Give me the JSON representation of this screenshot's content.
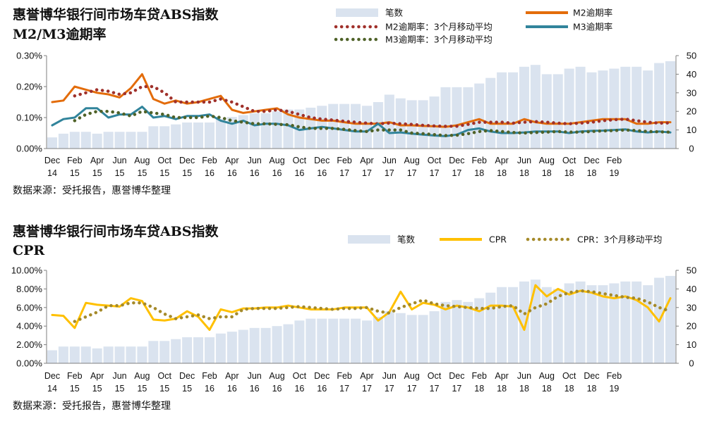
{
  "chart_data": [
    {
      "type": "bar",
      "title_lines": [
        "惠誉博华银行间市场车贷ABS指数",
        "M2/M3逾期率"
      ],
      "source": "数据来源：受托报告，惠誉博华整理",
      "legend": {
        "bars": "笔数",
        "m2": "M2逾期率",
        "m2ma": "M2逾期率：3个月移动平均",
        "m3": "M3逾期率",
        "m3ma": "M3逾期率：3个月移动平均"
      },
      "x_tick_labels": [
        {
          "month": "Dec",
          "year": "14"
        },
        {
          "month": "Feb",
          "year": "15"
        },
        {
          "month": "Apr",
          "year": "15"
        },
        {
          "month": "Jun",
          "year": "15"
        },
        {
          "month": "Aug",
          "year": "15"
        },
        {
          "month": "Oct",
          "year": "15"
        },
        {
          "month": "Dec",
          "year": "15"
        },
        {
          "month": "Feb",
          "year": "16"
        },
        {
          "month": "Apr",
          "year": "16"
        },
        {
          "month": "Jun",
          "year": "16"
        },
        {
          "month": "Aug",
          "year": "16"
        },
        {
          "month": "Oct",
          "year": "16"
        },
        {
          "month": "Dec",
          "year": "16"
        },
        {
          "month": "Feb",
          "year": "17"
        },
        {
          "month": "Apr",
          "year": "17"
        },
        {
          "month": "Jun",
          "year": "17"
        },
        {
          "month": "Aug",
          "year": "17"
        },
        {
          "month": "Oct",
          "year": "17"
        },
        {
          "month": "Dec",
          "year": "17"
        },
        {
          "month": "Feb",
          "year": "18"
        },
        {
          "month": "Apr",
          "year": "18"
        },
        {
          "month": "Jun",
          "year": "18"
        },
        {
          "month": "Aug",
          "year": "18"
        },
        {
          "month": "Oct",
          "year": "18"
        },
        {
          "month": "Dec",
          "year": "18"
        },
        {
          "month": "Feb",
          "year": "19"
        }
      ],
      "y_left": {
        "ticks": [
          "0.00%",
          "0.10%",
          "0.20%",
          "0.30%"
        ],
        "min": 0,
        "max": 0.3
      },
      "y_right": {
        "ticks": [
          "0",
          "10",
          "20",
          "30",
          "40",
          "50"
        ],
        "min": 0,
        "max": 50
      },
      "counts": [
        6,
        8,
        9,
        9,
        8,
        9,
        9,
        9,
        9,
        12,
        12,
        13,
        14,
        14,
        14,
        16,
        17,
        18,
        19,
        19,
        20,
        21,
        21,
        22,
        23,
        24,
        24,
        24,
        23,
        25,
        29,
        27,
        26,
        26,
        28,
        33,
        33,
        33,
        35,
        38,
        41,
        41,
        44,
        45,
        40,
        40,
        43,
        44,
        41,
        42,
        43,
        44,
        44,
        42,
        46,
        47
      ],
      "series": [
        {
          "name": "M2逾期率",
          "key": "m2",
          "values": [
            0.15,
            0.155,
            0.2,
            0.19,
            0.18,
            0.175,
            0.165,
            0.195,
            0.24,
            0.16,
            0.145,
            0.155,
            0.145,
            0.15,
            0.16,
            0.17,
            0.125,
            0.115,
            0.12,
            0.125,
            0.13,
            0.11,
            0.1,
            0.095,
            0.09,
            0.09,
            0.085,
            0.08,
            0.08,
            0.08,
            0.085,
            0.075,
            0.075,
            0.073,
            0.072,
            0.07,
            0.075,
            0.085,
            0.095,
            0.08,
            0.08,
            0.08,
            0.095,
            0.085,
            0.08,
            0.08,
            0.08,
            0.085,
            0.09,
            0.095,
            0.095,
            0.095,
            0.08,
            0.08,
            0.085,
            0.085
          ]
        },
        {
          "name": "M2逾期率：3个月移动平均",
          "key": "m2ma",
          "values": [
            null,
            null,
            0.17,
            0.18,
            0.19,
            0.185,
            0.175,
            0.18,
            0.2,
            0.2,
            0.18,
            0.15,
            0.15,
            0.15,
            0.15,
            0.16,
            0.15,
            0.135,
            0.12,
            0.12,
            0.125,
            0.12,
            0.11,
            0.1,
            0.095,
            0.092,
            0.088,
            0.085,
            0.082,
            0.08,
            0.082,
            0.08,
            0.078,
            0.075,
            0.073,
            0.072,
            0.072,
            0.078,
            0.085,
            0.085,
            0.085,
            0.082,
            0.085,
            0.087,
            0.085,
            0.082,
            0.08,
            0.082,
            0.085,
            0.09,
            0.093,
            0.095,
            0.09,
            0.085,
            0.082,
            0.083
          ]
        },
        {
          "name": "M3逾期率",
          "key": "m3",
          "values": [
            0.075,
            0.095,
            0.1,
            0.13,
            0.13,
            0.1,
            0.11,
            0.11,
            0.135,
            0.1,
            0.105,
            0.095,
            0.105,
            0.105,
            0.11,
            0.09,
            0.08,
            0.09,
            0.075,
            0.08,
            0.08,
            0.075,
            0.06,
            0.065,
            0.07,
            0.065,
            0.06,
            0.055,
            0.055,
            0.08,
            0.05,
            0.052,
            0.048,
            0.045,
            0.042,
            0.04,
            0.045,
            0.06,
            0.065,
            0.055,
            0.05,
            0.05,
            0.052,
            0.055,
            0.055,
            0.055,
            0.05,
            0.055,
            0.057,
            0.058,
            0.06,
            0.062,
            0.055,
            0.052,
            0.055,
            0.052
          ]
        },
        {
          "name": "M3逾期率：3个月移动平均",
          "key": "m3ma",
          "values": [
            null,
            null,
            0.09,
            0.11,
            0.12,
            0.12,
            0.115,
            0.105,
            0.12,
            0.115,
            0.11,
            0.1,
            0.1,
            0.1,
            0.105,
            0.1,
            0.09,
            0.085,
            0.08,
            0.08,
            0.078,
            0.077,
            0.07,
            0.065,
            0.065,
            0.065,
            0.062,
            0.058,
            0.055,
            0.06,
            0.06,
            0.06,
            0.05,
            0.048,
            0.045,
            0.042,
            0.043,
            0.048,
            0.055,
            0.058,
            0.055,
            0.052,
            0.05,
            0.052,
            0.053,
            0.055,
            0.053,
            0.053,
            0.055,
            0.057,
            0.058,
            0.06,
            0.058,
            0.055,
            0.054,
            0.053
          ]
        }
      ]
    },
    {
      "type": "bar",
      "title_lines": [
        "惠誉博华银行间市场车贷ABS指数",
        "CPR"
      ],
      "source": "数据来源：受托报告，惠誉博华整理",
      "legend": {
        "bars": "笔数",
        "cpr": "CPR",
        "cprma": "CPR：3个月移动平均"
      },
      "x_tick_labels": [
        {
          "month": "Dec",
          "year": "14"
        },
        {
          "month": "Feb",
          "year": "15"
        },
        {
          "month": "Apr",
          "year": "15"
        },
        {
          "month": "Jun",
          "year": "15"
        },
        {
          "month": "Aug",
          "year": "15"
        },
        {
          "month": "Oct",
          "year": "15"
        },
        {
          "month": "Dec",
          "year": "15"
        },
        {
          "month": "Feb",
          "year": "16"
        },
        {
          "month": "Apr",
          "year": "16"
        },
        {
          "month": "Jun",
          "year": "16"
        },
        {
          "month": "Aug",
          "year": "16"
        },
        {
          "month": "Oct",
          "year": "16"
        },
        {
          "month": "Dec",
          "year": "16"
        },
        {
          "month": "Feb",
          "year": "17"
        },
        {
          "month": "Apr",
          "year": "17"
        },
        {
          "month": "Jun",
          "year": "17"
        },
        {
          "month": "Aug",
          "year": "17"
        },
        {
          "month": "Oct",
          "year": "17"
        },
        {
          "month": "Dec",
          "year": "17"
        },
        {
          "month": "Feb",
          "year": "18"
        },
        {
          "month": "Apr",
          "year": "18"
        },
        {
          "month": "Jun",
          "year": "18"
        },
        {
          "month": "Aug",
          "year": "18"
        },
        {
          "month": "Oct",
          "year": "18"
        },
        {
          "month": "Dec",
          "year": "18"
        },
        {
          "month": "Feb",
          "year": "19"
        }
      ],
      "y_left": {
        "ticks": [
          "0.00%",
          "2.00%",
          "4.00%",
          "6.00%",
          "8.00%",
          "10.00%"
        ],
        "min": 0,
        "max": 10
      },
      "y_right": {
        "ticks": [
          "0",
          "10",
          "20",
          "30",
          "40",
          "50"
        ],
        "min": 0,
        "max": 50
      },
      "counts": [
        7,
        9,
        9,
        9,
        8,
        9,
        9,
        9,
        9,
        12,
        12,
        13,
        14,
        14,
        14,
        16,
        17,
        18,
        19,
        19,
        20,
        21,
        23,
        24,
        24,
        24,
        24,
        24,
        23,
        25,
        28,
        27,
        26,
        26,
        28,
        33,
        34,
        33,
        35,
        38,
        41,
        41,
        44,
        45,
        41,
        40,
        43,
        44,
        42,
        42,
        43,
        44,
        44,
        42,
        46,
        47
      ],
      "series": [
        {
          "name": "CPR",
          "key": "cpr",
          "values": [
            5.2,
            5.1,
            3.8,
            6.5,
            6.3,
            6.2,
            6.1,
            7.0,
            6.7,
            4.7,
            4.6,
            4.8,
            5.6,
            5.0,
            3.6,
            5.8,
            5.5,
            5.9,
            5.9,
            6.0,
            6.0,
            6.2,
            6.0,
            5.8,
            5.8,
            5.8,
            6.0,
            6.0,
            6.0,
            4.6,
            5.5,
            7.7,
            5.8,
            6.5,
            6.3,
            5.8,
            6.2,
            6.0,
            5.6,
            6.2,
            6.2,
            6.1,
            3.6,
            8.4,
            7.2,
            8.0,
            7.4,
            7.8,
            7.6,
            7.2,
            7.0,
            7.2,
            6.8,
            6.0,
            4.5,
            7.0
          ]
        },
        {
          "name": "CPR：3个月移动平均",
          "key": "cprma",
          "values": [
            null,
            null,
            4.5,
            5.0,
            5.5,
            6.2,
            6.2,
            6.5,
            6.5,
            6.0,
            5.3,
            4.8,
            5.0,
            5.2,
            4.8,
            5.0,
            5.0,
            5.8,
            5.9,
            5.9,
            5.9,
            6.0,
            6.1,
            6.0,
            5.9,
            5.8,
            5.9,
            5.9,
            6.0,
            5.6,
            5.4,
            6.0,
            6.4,
            6.8,
            6.4,
            6.2,
            6.1,
            6.0,
            5.9,
            5.9,
            6.1,
            6.2,
            5.3,
            6.0,
            6.4,
            7.2,
            7.6,
            7.8,
            7.7,
            7.5,
            7.3,
            7.1,
            7.0,
            6.6,
            6.0,
            5.6
          ]
        }
      ]
    }
  ],
  "colors": {
    "bars": "#dae3ef",
    "m2": "#e36c0a",
    "m2ma": "#a0312b",
    "m3": "#31849b",
    "m3ma": "#4f6228",
    "cpr": "#ffc000",
    "cprma": "#a58a2a",
    "axis": "#7f7f7f"
  }
}
